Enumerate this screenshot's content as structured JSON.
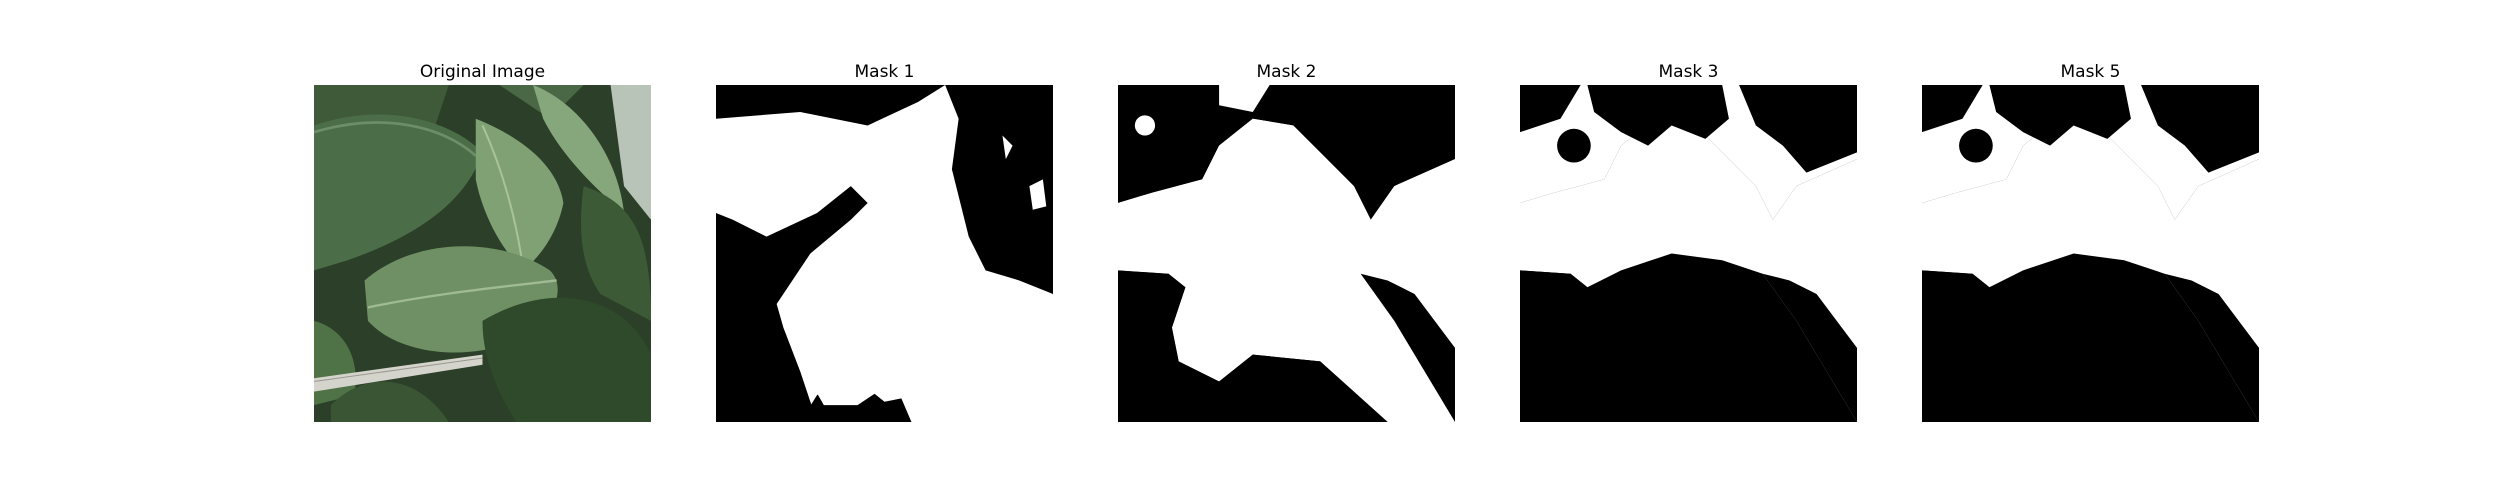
{
  "panels": [
    {
      "title": "Original Image",
      "kind": "photo",
      "description_icon": "leaf-photo"
    },
    {
      "title": "Mask 1",
      "kind": "mask"
    },
    {
      "title": "Mask 2",
      "kind": "mask"
    },
    {
      "title": "Mask 3",
      "kind": "mask"
    },
    {
      "title": "Mask 5",
      "kind": "mask"
    }
  ],
  "colors": {
    "background": "#ffffff",
    "mask_foreground": "#ffffff",
    "mask_background": "#000000",
    "leaf_dark": "#2f4a2c",
    "leaf_mid": "#5e7d58",
    "leaf_light": "#8fae86",
    "stake": "#cfcfc8"
  }
}
